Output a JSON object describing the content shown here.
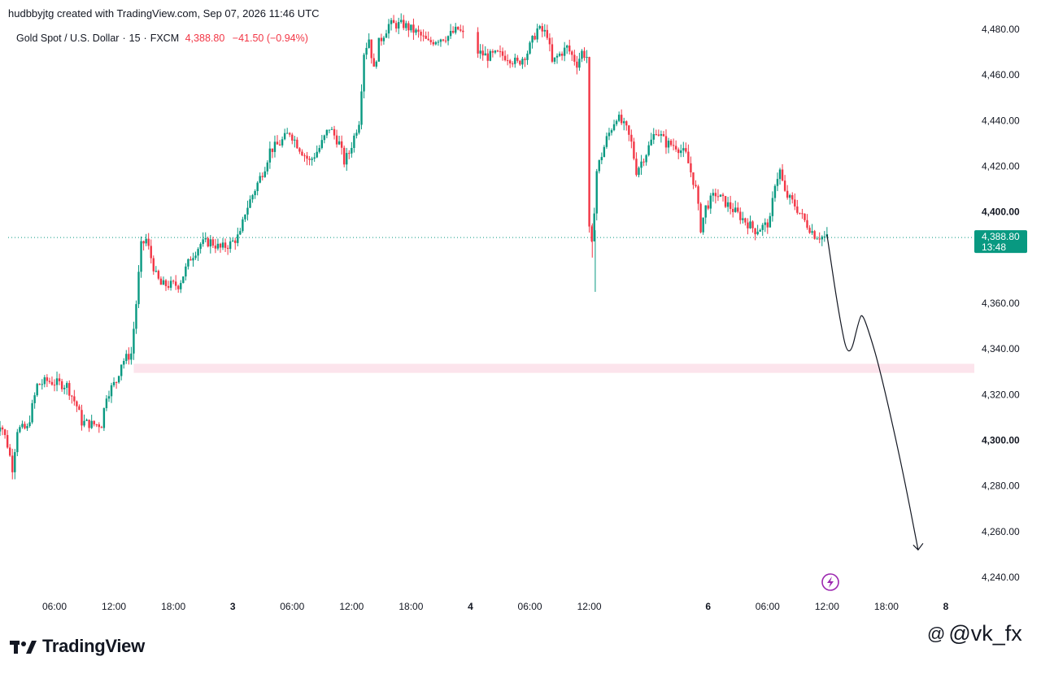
{
  "header": {
    "created_by": "hudbbyjtg created with TradingView.com, Sep 07, 2026 11:46 UTC",
    "symbol": "Gold Spot / U.S. Dollar",
    "interval": "15",
    "exchange": "FXCM",
    "last_price": "4,388.80",
    "change": "−41.50 (−0.94%)"
  },
  "price_badge": {
    "price": "4,388.80",
    "countdown": "13:48",
    "color": "#089981"
  },
  "logo": {
    "text": "TradingView"
  },
  "watermark": {
    "icon": "threads-icon",
    "text": "@vk_fx"
  },
  "colors": {
    "up": "#089981",
    "down": "#f23645",
    "zone": "#fce4ec",
    "flash_icon": "#9c27b0"
  },
  "chart_data": {
    "type": "candlestick",
    "ylim": [
      4235,
      4484
    ],
    "y_ticks": [
      {
        "label": "4,480.00",
        "value": 4480,
        "bold": false
      },
      {
        "label": "4,460.00",
        "value": 4460,
        "bold": false
      },
      {
        "label": "4,440.00",
        "value": 4440,
        "bold": false
      },
      {
        "label": "4,420.00",
        "value": 4420,
        "bold": false
      },
      {
        "label": "4,400.00",
        "value": 4400,
        "bold": true
      },
      {
        "label": "4,360.00",
        "value": 4360,
        "bold": false
      },
      {
        "label": "4,340.00",
        "value": 4340,
        "bold": false
      },
      {
        "label": "4,320.00",
        "value": 4320,
        "bold": false
      },
      {
        "label": "4,300.00",
        "value": 4300,
        "bold": true
      },
      {
        "label": "4,280.00",
        "value": 4280,
        "bold": false
      },
      {
        "label": "4,260.00",
        "value": 4260,
        "bold": false
      },
      {
        "label": "4,240.00",
        "value": 4240,
        "bold": false
      }
    ],
    "x_ticks": [
      {
        "label": "06:00",
        "hour": 6,
        "bold": false
      },
      {
        "label": "12:00",
        "hour": 12,
        "bold": false
      },
      {
        "label": "18:00",
        "hour": 18,
        "bold": false
      },
      {
        "label": "3",
        "hour": 24,
        "bold": true
      },
      {
        "label": "06:00",
        "hour": 30,
        "bold": false
      },
      {
        "label": "12:00",
        "hour": 36,
        "bold": false
      },
      {
        "label": "18:00",
        "hour": 42,
        "bold": false
      },
      {
        "label": "4",
        "hour": 48,
        "bold": true
      },
      {
        "label": "06:00",
        "hour": 54,
        "bold": false
      },
      {
        "label": "12:00",
        "hour": 60,
        "bold": false
      },
      {
        "label": "6",
        "hour": 72,
        "bold": true
      },
      {
        "label": "06:00",
        "hour": 78,
        "bold": false
      },
      {
        "label": "12:00",
        "hour": 84,
        "bold": false
      },
      {
        "label": "18:00",
        "hour": 90,
        "bold": false
      },
      {
        "label": "8",
        "hour": 96,
        "bold": true
      }
    ],
    "price_path": [
      [
        0,
        4300
      ],
      [
        0.8,
        4308
      ],
      [
        1.5,
        4298
      ],
      [
        2.0,
        4288
      ],
      [
        2.5,
        4305
      ],
      [
        3.5,
        4305
      ],
      [
        4.5,
        4324
      ],
      [
        5.5,
        4326
      ],
      [
        6.5,
        4325
      ],
      [
        7.5,
        4324
      ],
      [
        8.5,
        4315
      ],
      [
        9.0,
        4308
      ],
      [
        10.0,
        4307
      ],
      [
        11.0,
        4307
      ],
      [
        11.5,
        4320
      ],
      [
        12.5,
        4326
      ],
      [
        13.0,
        4334
      ],
      [
        14.0,
        4338
      ],
      [
        14.5,
        4360
      ],
      [
        15.0,
        4385
      ],
      [
        15.5,
        4388
      ],
      [
        16.0,
        4380
      ],
      [
        16.5,
        4372
      ],
      [
        17.0,
        4368
      ],
      [
        18.0,
        4368
      ],
      [
        18.8,
        4368
      ],
      [
        19.5,
        4375
      ],
      [
        20.0,
        4380
      ],
      [
        21.0,
        4386
      ],
      [
        22.0,
        4387
      ],
      [
        23.0,
        4384
      ],
      [
        24.0,
        4386
      ],
      [
        25.0,
        4390
      ],
      [
        25.5,
        4400
      ],
      [
        26.5,
        4410
      ],
      [
        27.5,
        4420
      ],
      [
        28.0,
        4427
      ],
      [
        29.0,
        4430
      ],
      [
        30.0,
        4435
      ],
      [
        31.0,
        4428
      ],
      [
        32.0,
        4422
      ],
      [
        33.0,
        4428
      ],
      [
        34.0,
        4437
      ],
      [
        35.0,
        4430
      ],
      [
        35.5,
        4422
      ],
      [
        36.0,
        4426
      ],
      [
        37.0,
        4440
      ],
      [
        37.5,
        4470
      ],
      [
        38.0,
        4476
      ],
      [
        38.5,
        4462
      ],
      [
        39.0,
        4474
      ],
      [
        40.0,
        4482
      ],
      [
        41.5,
        4482
      ],
      [
        43.0,
        4478
      ],
      [
        44.0,
        4474
      ],
      [
        45.0,
        4476
      ],
      [
        46.0,
        4477
      ],
      [
        47.0,
        4480
      ],
      [
        48.0,
        4475
      ],
      [
        49.0,
        4470
      ],
      [
        50.0,
        4468
      ],
      [
        51.0,
        4469
      ],
      [
        52.0,
        4468
      ],
      [
        53.0,
        4465
      ],
      [
        54.0,
        4470
      ],
      [
        55.0,
        4480
      ],
      [
        56.0,
        4478
      ],
      [
        56.5,
        4465
      ],
      [
        57.0,
        4468
      ],
      [
        58.0,
        4472
      ],
      [
        59.0,
        4465
      ],
      [
        59.5,
        4470
      ],
      [
        60.0,
        4468
      ],
      [
        60.2,
        4393
      ],
      [
        60.5,
        4385
      ],
      [
        61.0,
        4418
      ],
      [
        61.5,
        4425
      ],
      [
        62.0,
        4432
      ],
      [
        63.0,
        4442
      ],
      [
        64.0,
        4436
      ],
      [
        64.5,
        4430
      ],
      [
        65.0,
        4418
      ],
      [
        66.0,
        4426
      ],
      [
        67.0,
        4436
      ],
      [
        68.0,
        4430
      ],
      [
        69.0,
        4429
      ],
      [
        70.0,
        4425
      ],
      [
        71.0,
        4410
      ],
      [
        71.5,
        4393
      ],
      [
        72.0,
        4402
      ],
      [
        73.0,
        4408
      ],
      [
        74.0,
        4404
      ],
      [
        75.0,
        4400
      ],
      [
        76.0,
        4396
      ],
      [
        77.0,
        4392
      ],
      [
        78.0,
        4394
      ],
      [
        78.5,
        4396
      ],
      [
        79.0,
        4413
      ],
      [
        79.5,
        4418
      ],
      [
        80.0,
        4408
      ],
      [
        81.0,
        4403
      ],
      [
        82.0,
        4396
      ],
      [
        83.0,
        4390
      ],
      [
        84.0,
        4388.8
      ]
    ],
    "current_price": 4388.8,
    "zone": {
      "from": 4329.5,
      "to": 4333.5,
      "from_hour": 14.0
    },
    "projection": [
      [
        84.0,
        4390
      ],
      [
        85.2,
        4355
      ],
      [
        86.2,
        4334
      ],
      [
        87.3,
        4354
      ],
      [
        87.6,
        4355
      ],
      [
        88.2,
        4348
      ],
      [
        89.3,
        4332
      ],
      [
        91.5,
        4290
      ],
      [
        93.2,
        4252
      ]
    ]
  }
}
